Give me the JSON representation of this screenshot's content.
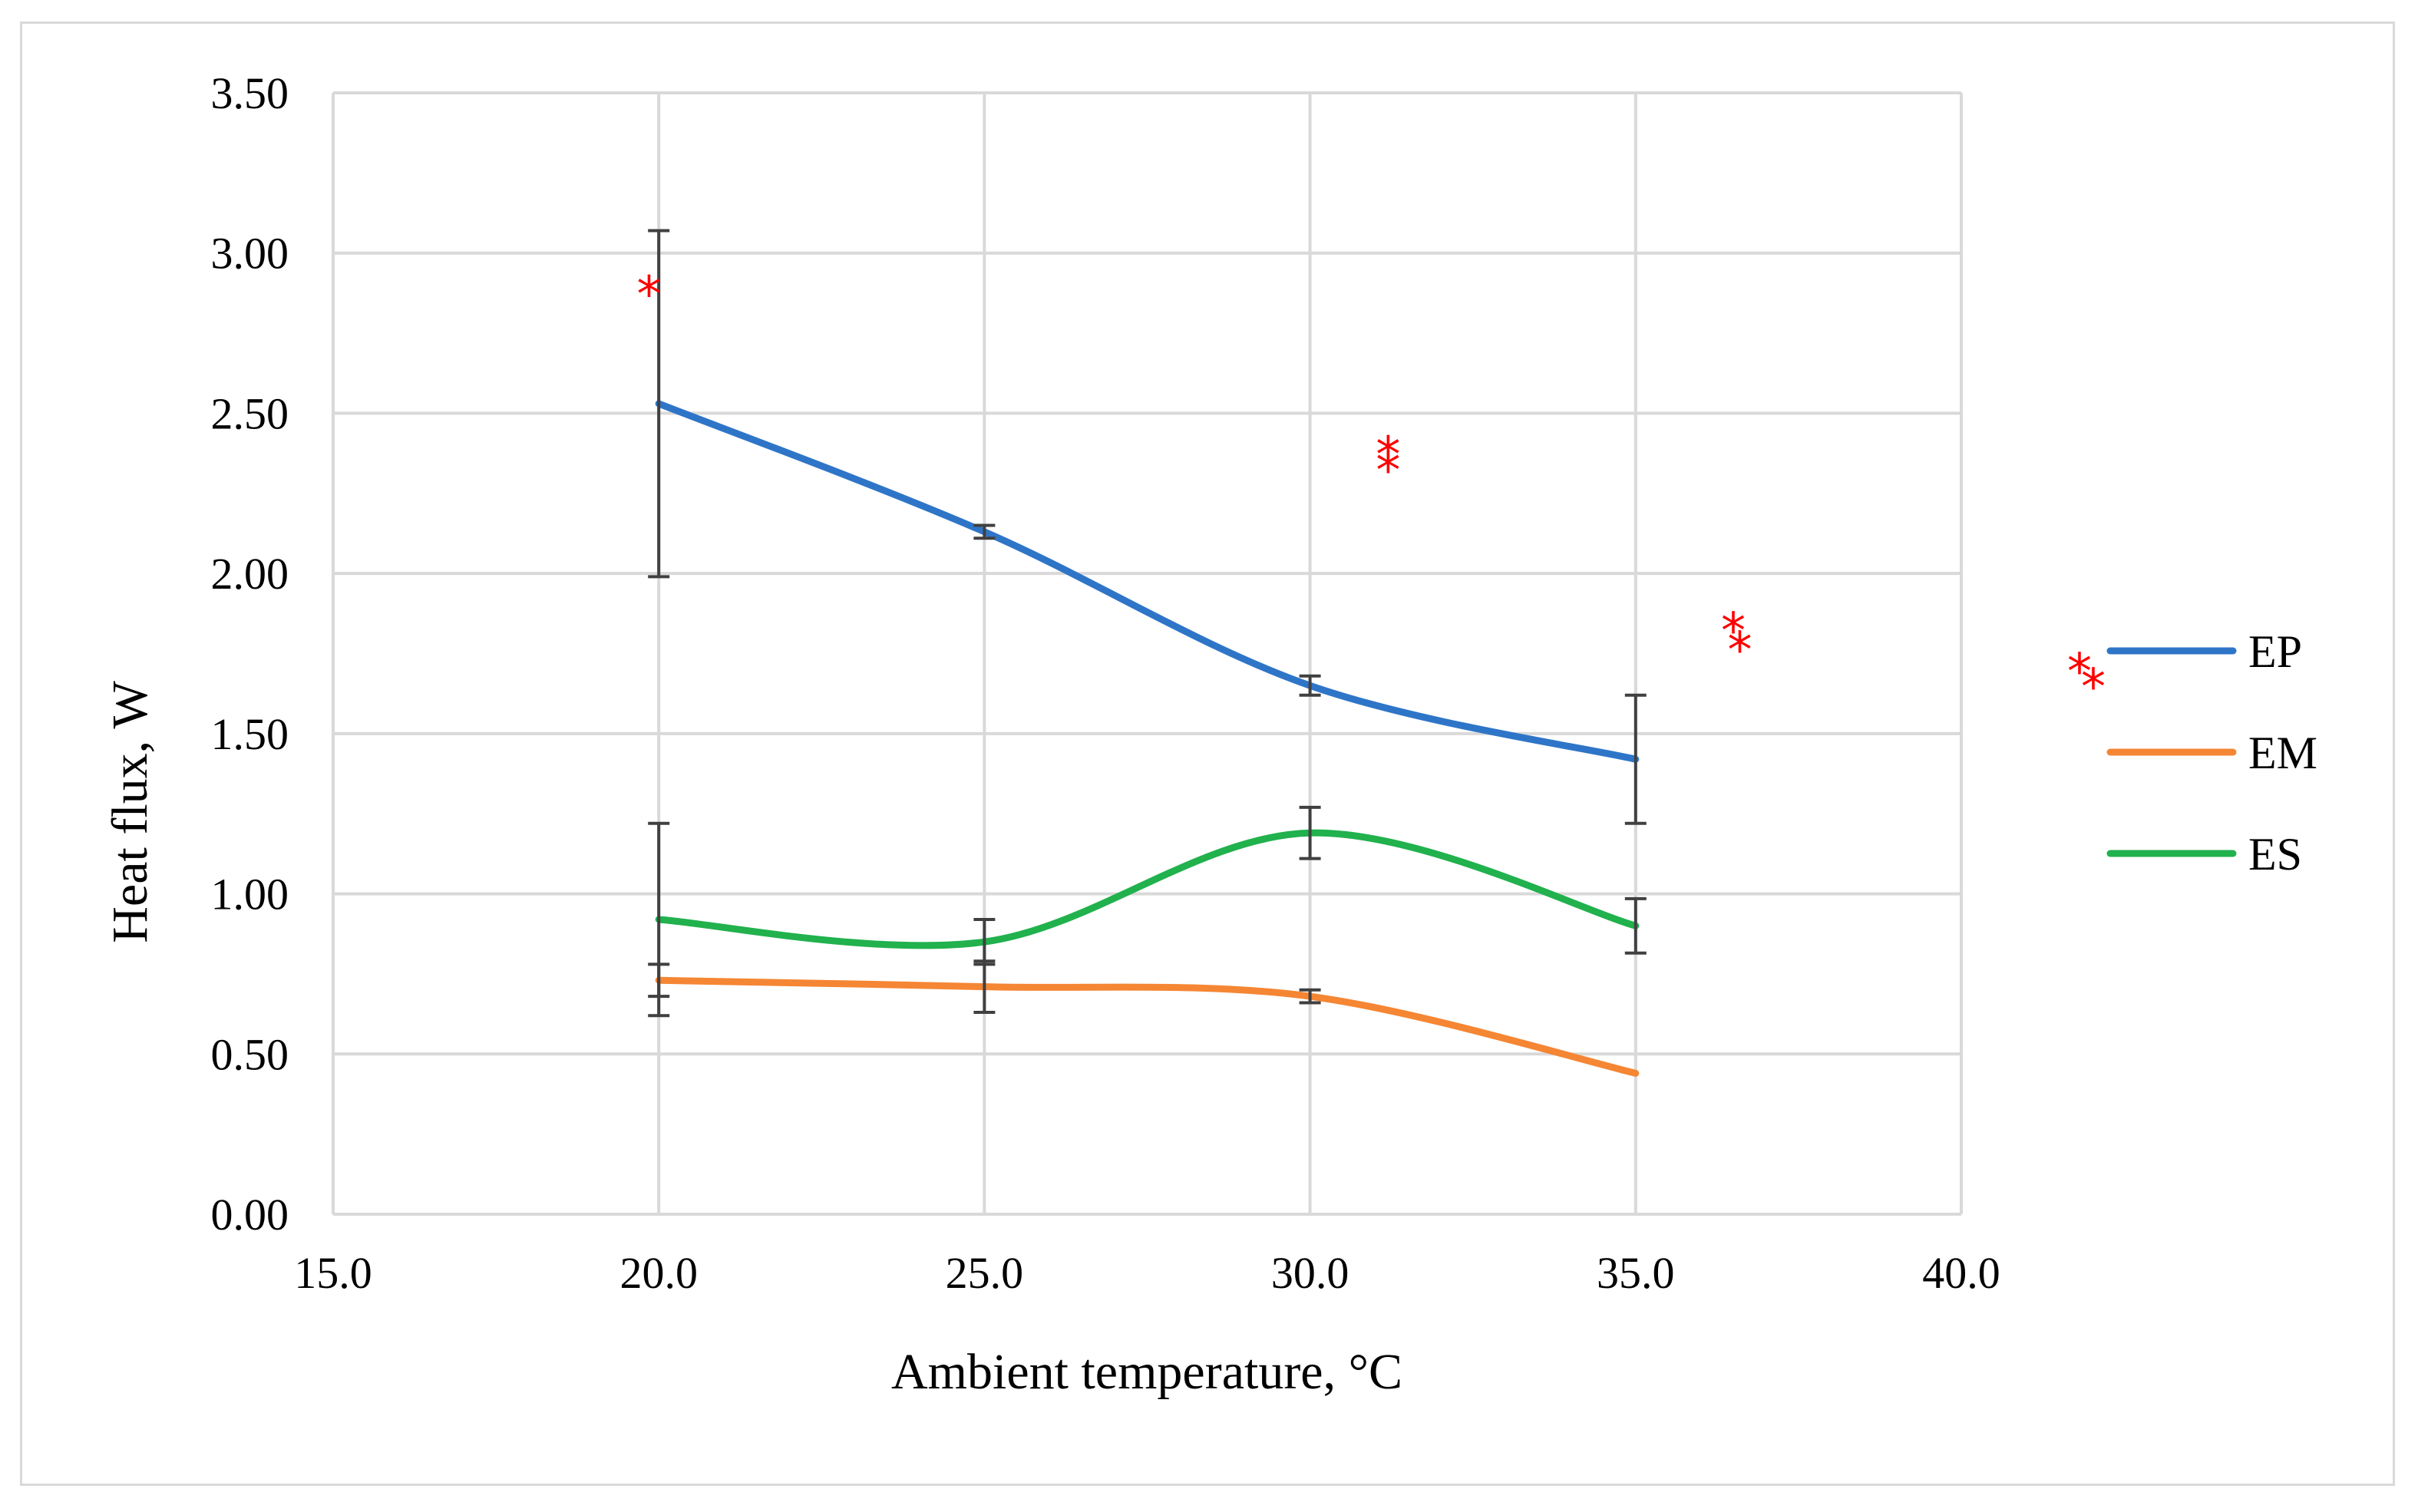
{
  "chart_data": {
    "type": "line",
    "title": "",
    "xlabel": "Ambient temperature, °C",
    "ylabel": "Heat flux, W",
    "xlim": [
      15,
      40
    ],
    "ylim": [
      0,
      3.5
    ],
    "x_ticks": [
      "15.0",
      "20.0",
      "25.0",
      "30.0",
      "35.0",
      "40.0"
    ],
    "y_ticks": [
      "0.00",
      "0.50",
      "1.00",
      "1.50",
      "2.00",
      "2.50",
      "3.00",
      "3.50"
    ],
    "grid": true,
    "smooth": true,
    "legend": "right",
    "x": [
      20,
      25,
      30,
      35
    ],
    "series": [
      {
        "name": "EP",
        "color": "#2e75c8",
        "values": [
          2.53,
          2.13,
          1.65,
          1.42
        ],
        "error": [
          0.54,
          0.02,
          0.03,
          0.2
        ]
      },
      {
        "name": "EM",
        "color": "#f58634",
        "values": [
          0.73,
          0.71,
          0.68,
          0.44
        ],
        "error": [
          0.05,
          0.08,
          0.02,
          0.0
        ]
      },
      {
        "name": "ES",
        "color": "#21b14d",
        "values": [
          0.92,
          0.85,
          1.19,
          0.9
        ],
        "error": [
          0.3,
          0.07,
          0.08,
          0.085
        ]
      }
    ],
    "significance_markers": [
      {
        "symbol": "*",
        "x": 19.85,
        "y": 2.89
      },
      {
        "symbol": "*",
        "x": 31.2,
        "y": 2.39
      },
      {
        "symbol": "*",
        "x": 31.2,
        "y": 2.34
      },
      {
        "symbol": "*",
        "x": 36.5,
        "y": 1.84
      },
      {
        "symbol": "*",
        "x": 36.6,
        "y": 1.78
      }
    ],
    "legend_markers": [
      "*",
      "*"
    ]
  }
}
